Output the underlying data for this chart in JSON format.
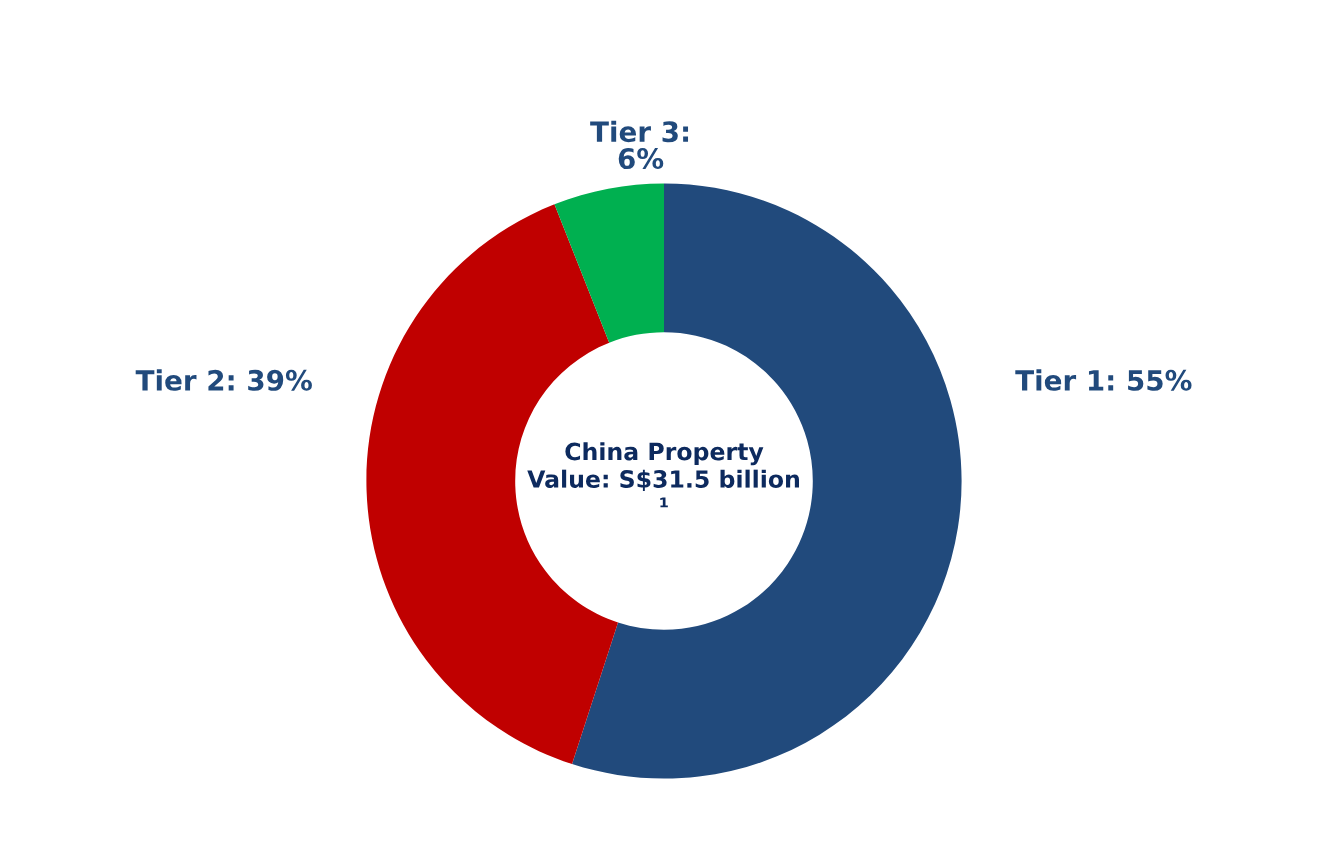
{
  "chart_data": {
    "type": "donut",
    "categories": [
      "Tier 1: 55%",
      "Tier 2: 39%",
      "Tier 3: 6%"
    ],
    "values": [
      55,
      39,
      6
    ],
    "colors": [
      "#214a7c",
      "#c00000",
      "#00b050"
    ],
    "annotations": [
      "China Property Value: S$31.5 billion ¹"
    ],
    "legend": false
  }
}
